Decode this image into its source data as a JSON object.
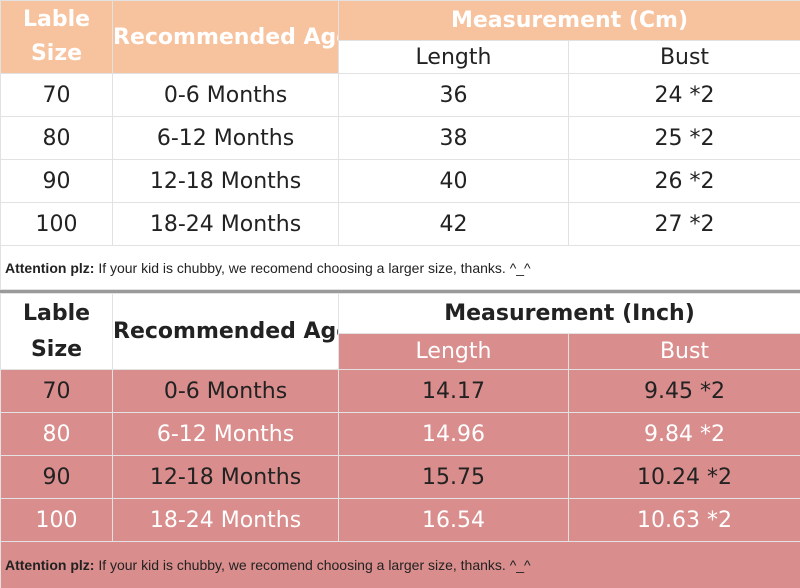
{
  "cm_table": {
    "header": {
      "size": "Lable\nSize",
      "age": "Recommended Age",
      "measurement": "Measurement (Cm)",
      "length": "Length",
      "bust": "Bust"
    },
    "rows": [
      [
        "70",
        "0-6 Months",
        "36",
        "24 *2"
      ],
      [
        "80",
        "6-12 Months",
        "38",
        "25 *2"
      ],
      [
        "90",
        "12-18 Months",
        "40",
        "26 *2"
      ],
      [
        "100",
        "18-24 Months",
        "42",
        "27 *2"
      ]
    ],
    "attention": {
      "label": "Attention plz:",
      "text": "If your kid is chubby, we recomend choosing a larger size, thanks. ^_^"
    }
  },
  "inch_table": {
    "header": {
      "size": "Lable\nSize",
      "age": "Recommended Age",
      "measurement": "Measurement (Inch)",
      "length": "Length",
      "bust": "Bust"
    },
    "rows": [
      [
        "70",
        "0-6 Months",
        "14.17",
        "9.45 *2"
      ],
      [
        "80",
        "6-12 Months",
        "14.96",
        "9.84 *2"
      ],
      [
        "90",
        "12-18 Months",
        "15.75",
        "10.24 *2"
      ],
      [
        "100",
        "18-24 Months",
        "16.54",
        "10.63 *2"
      ]
    ],
    "attention": {
      "label": "Attention plz:",
      "text": "If your kid is chubby, we recomend choosing a larger size, thanks. ^_^"
    }
  }
}
